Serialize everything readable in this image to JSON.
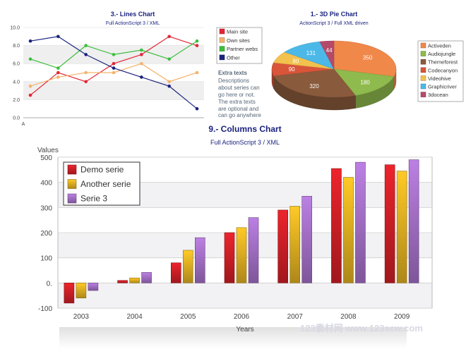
{
  "chart_data": [
    {
      "type": "line",
      "title": "3.- Lines Chart",
      "subtitle": "Full ActionScript 3 / XML",
      "ylim": [
        0,
        10
      ],
      "yticks": [
        "0.0",
        "2.0",
        "4.0",
        "6.0",
        "8.0",
        "10.0"
      ],
      "x_first_label": "A",
      "series": [
        {
          "name": "Main site",
          "color": "#e32636",
          "values": [
            2.5,
            5.0,
            4.0,
            6.0,
            7.0,
            9.0,
            8.0
          ]
        },
        {
          "name": "Own sites",
          "color": "#f5b26b",
          "values": [
            3.5,
            4.5,
            5.0,
            5.0,
            6.0,
            4.0,
            5.0
          ]
        },
        {
          "name": "Partner webs",
          "color": "#3cbf3c",
          "values": [
            6.5,
            5.5,
            8.0,
            7.0,
            7.5,
            6.5,
            8.5
          ]
        },
        {
          "name": "Other",
          "color": "#1a237e",
          "values": [
            8.5,
            9.0,
            7.0,
            5.5,
            4.5,
            3.5,
            1.0
          ]
        }
      ],
      "extra": {
        "title": "Extra texts",
        "lines": [
          "Descriptions",
          "about series can",
          "go here or not.",
          "The extra texts",
          "are optional and",
          "can go anywhere"
        ]
      }
    },
    {
      "type": "pie",
      "title": "1.- 3D Pie Chart",
      "subtitle": "ActionScript 3 / Full XML driven",
      "slices": [
        {
          "name": "Activeden",
          "value": 350,
          "color": "#f0884a"
        },
        {
          "name": "Audiojungle",
          "value": 180,
          "color": "#8fba4d"
        },
        {
          "name": "Themeforest",
          "value": 320,
          "color": "#8a5a3c"
        },
        {
          "name": "Codecanyon",
          "value": 90,
          "color": "#d9553a"
        },
        {
          "name": "Videohive",
          "value": 80,
          "color": "#f2c14e"
        },
        {
          "name": "Graphicriver",
          "value": 131,
          "color": "#4cb8e8"
        },
        {
          "name": "3docean",
          "value": 44,
          "color": "#b44a6a"
        }
      ]
    },
    {
      "type": "bar",
      "title": "9.- Columns Chart",
      "subtitle": "Full ActionScript 3 / XML",
      "ylabel": "Values",
      "xlabel": "Years",
      "ylim": [
        -100,
        500
      ],
      "yticks": [
        "-100",
        "0.",
        "100",
        "200",
        "300",
        "400",
        "500"
      ],
      "categories": [
        "2003",
        "2004",
        "2005",
        "2006",
        "2007",
        "2008",
        "2009"
      ],
      "series": [
        {
          "name": "Demo serie",
          "color": "#d42027",
          "values": [
            -80,
            10,
            80,
            200,
            290,
            455,
            470
          ]
        },
        {
          "name": "Another serie",
          "color": "#e6b422",
          "values": [
            -60,
            20,
            130,
            220,
            305,
            420,
            445
          ]
        },
        {
          "name": "Serie 3",
          "color": "#a872cc",
          "values": [
            -30,
            42,
            180,
            260,
            345,
            480,
            490
          ]
        }
      ]
    }
  ],
  "watermark": "123素材网  www.123scw.com"
}
